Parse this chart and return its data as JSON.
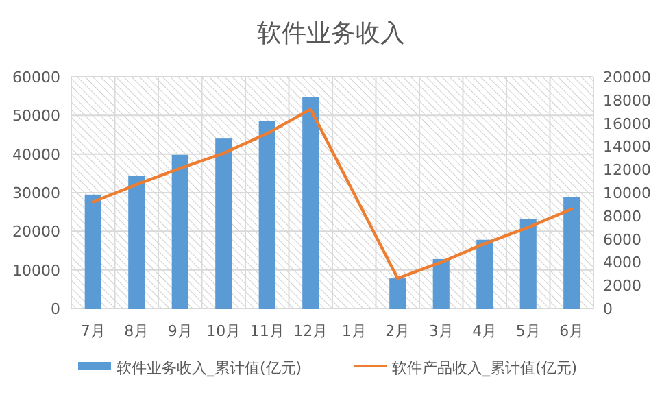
{
  "chart_data": {
    "type": "bar",
    "title": "软件业务收入",
    "categories": [
      "7月",
      "8月",
      "9月",
      "10月",
      "11月",
      "12月",
      "1月",
      "2月",
      "3月",
      "4月",
      "5月",
      "6月"
    ],
    "series": [
      {
        "name": "软件业务收入_累计值(亿元)",
        "color": "#5b9bd5",
        "values": [
          29500,
          34400,
          39800,
          44000,
          48600,
          54700,
          null,
          7800,
          12800,
          17800,
          23100,
          28800
        ]
      },
      {
        "name": "软件产品收入_累计值(亿元)",
        "type": "line",
        "axis": "y2",
        "color": "#ed7d31",
        "values": [
          9200,
          10700,
          12100,
          13400,
          15100,
          17200,
          null,
          2600,
          4000,
          5600,
          7000,
          8600
        ]
      }
    ],
    "ylim": [
      0,
      60000
    ],
    "yticks": [
      0,
      10000,
      20000,
      30000,
      40000,
      50000,
      60000
    ],
    "y2lim": [
      0,
      20000
    ],
    "y2ticks": [
      0,
      2000,
      4000,
      6000,
      8000,
      10000,
      12000,
      14000,
      16000,
      18000,
      20000
    ],
    "grid": true,
    "legend": "bottom"
  }
}
